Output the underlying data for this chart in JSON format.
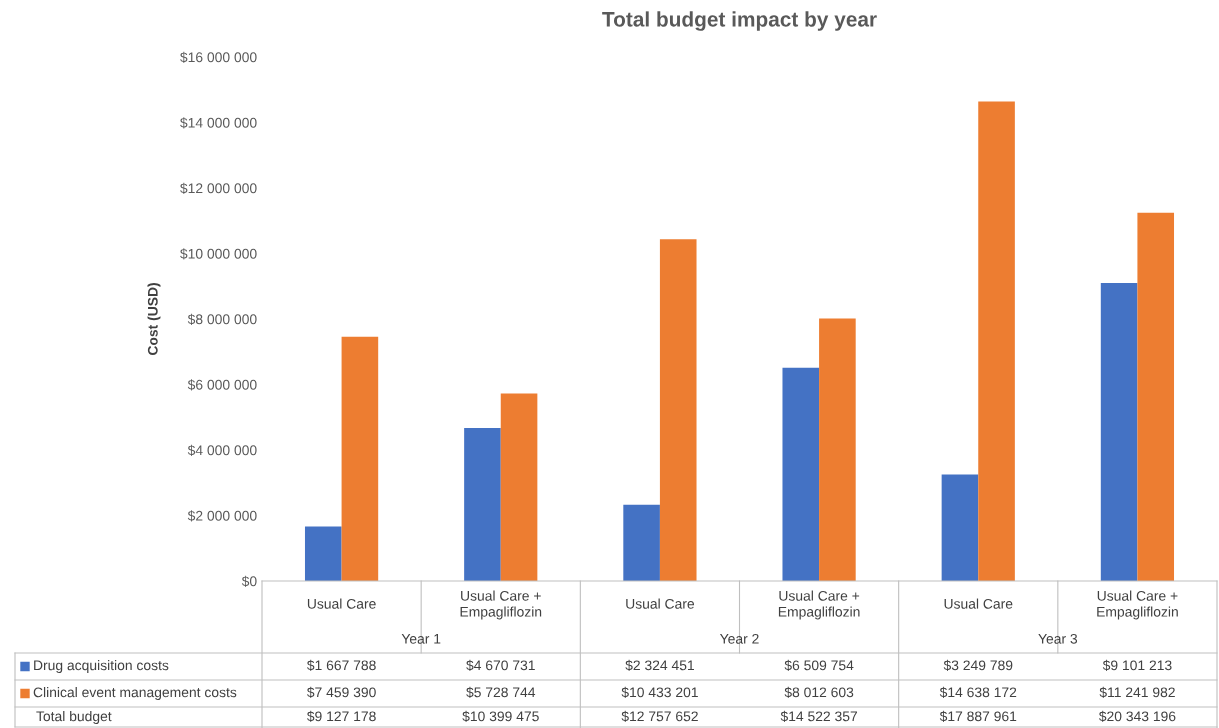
{
  "chart_data": {
    "type": "bar",
    "title": "Total budget impact by year",
    "ylabel": "Cost (USD)",
    "categories": [
      "Usual Care",
      "Usual Care +\nEmpagliflozin",
      "Usual Care",
      "Usual Care +\nEmpagliflozin",
      "Usual Care",
      "Usual Care +\nEmpagliflozin"
    ],
    "series": [
      {
        "name": "Drug acquisition costs",
        "color": "#4472c4",
        "values": [
          1667788,
          4670731,
          2324451,
          6509754,
          3249789,
          9101213
        ],
        "value_labels": [
          "$1 667 788",
          "$4 670 731",
          "$2 324 451",
          "$6 509 754",
          "$3 249 789",
          "$9 101 213"
        ]
      },
      {
        "name": "Clinical event management costs",
        "color": "#ed7d31",
        "values": [
          7459390,
          5728744,
          10433201,
          8012603,
          14638172,
          11241982
        ],
        "value_labels": [
          "$7 459 390",
          "$5 728 744",
          "$10 433 201",
          "$8 012 603",
          "$14 638 172",
          "$11 241 982"
        ]
      }
    ],
    "annotations": [
      "Year 1",
      "Year 2",
      "Year 3",
      "Total budget",
      "$9 127 178",
      "$10 399 475",
      "$12 757 652",
      "$14 522 357",
      "$17 887 961",
      "$20 343 196"
    ],
    "ylim": [
      0,
      16000000
    ],
    "yticks": [
      {
        "value": 0,
        "label": "$0"
      },
      {
        "value": 2000000,
        "label": "$2 000 000"
      },
      {
        "value": 4000000,
        "label": "$4 000 000"
      },
      {
        "value": 6000000,
        "label": "$6 000 000"
      },
      {
        "value": 8000000,
        "label": "$8 000 000"
      },
      {
        "value": 10000000,
        "label": "$10 000 000"
      },
      {
        "value": 12000000,
        "label": "$12 000 000"
      },
      {
        "value": 14000000,
        "label": "$14 000 000"
      },
      {
        "value": 16000000,
        "label": "$16 000 000"
      }
    ],
    "grid": false,
    "legend": "bottom"
  }
}
